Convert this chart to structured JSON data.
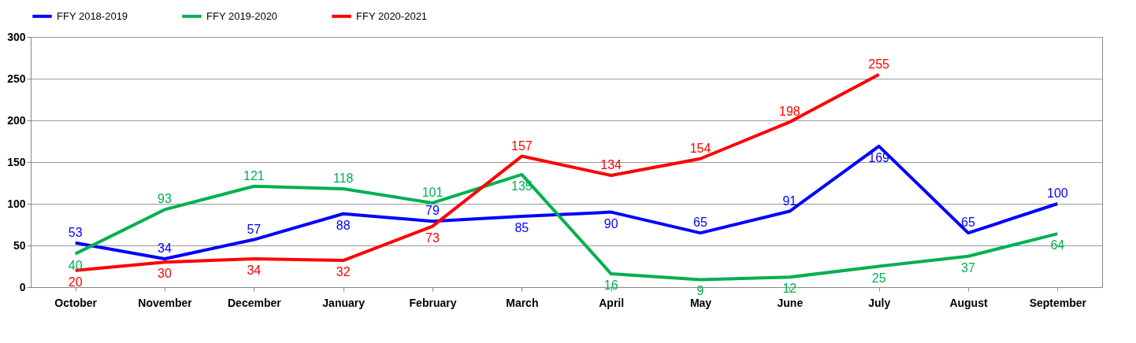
{
  "chart_data": {
    "type": "line",
    "categories": [
      "October",
      "November",
      "December",
      "January",
      "February",
      "March",
      "April",
      "May",
      "June",
      "July",
      "August",
      "September"
    ],
    "series": [
      {
        "name": "FFY 2018-2019",
        "color": "#0000ff",
        "values": [
          53,
          34,
          57,
          88,
          79,
          85,
          90,
          65,
          91,
          169,
          65,
          100
        ]
      },
      {
        "name": "FFY 2019-2020",
        "color": "#00b050",
        "values": [
          40,
          93,
          121,
          118,
          101,
          135,
          16,
          9,
          12,
          25,
          37,
          64
        ]
      },
      {
        "name": "FFY 2020-2021",
        "color": "#ff0000",
        "values": [
          20,
          30,
          34,
          32,
          73,
          157,
          134,
          154,
          198,
          255,
          null,
          null
        ]
      }
    ],
    "ylim": [
      0,
      300
    ],
    "yticks": [
      0,
      50,
      100,
      150,
      200,
      250,
      300
    ],
    "grid": "y",
    "legend": "top",
    "data_labels": true
  }
}
